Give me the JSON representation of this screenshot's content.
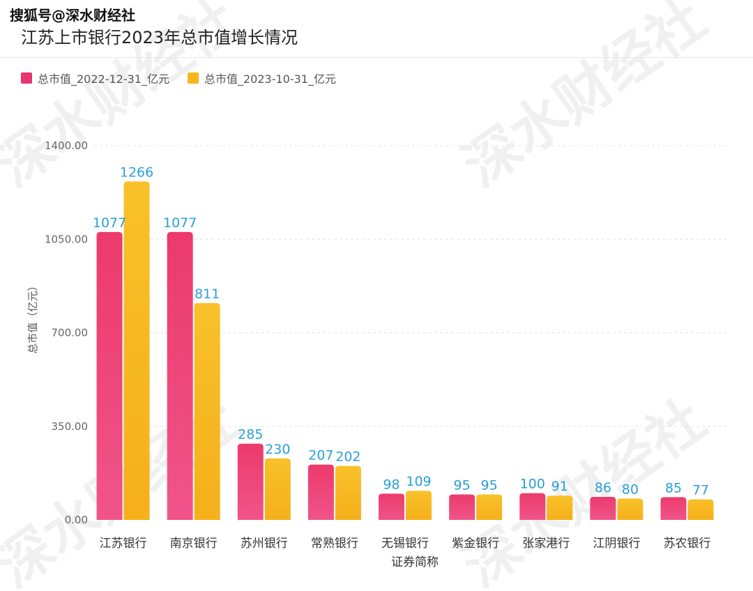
{
  "watermark": "搜狐号@深水财经社",
  "background_watermark": "深水财经社",
  "colors": {
    "series1": "#e8346f",
    "series2": "#f7b71e",
    "value_label": "#2a9fd8",
    "grid": "#e4e4e4"
  },
  "chart_data": {
    "type": "bar",
    "title": "江苏上市银行2023年总市值增长情况",
    "xlabel": "证券简称",
    "ylabel": "总市值（亿元）",
    "ylim": [
      0,
      1400
    ],
    "yticks": [
      "0.00",
      "350.00",
      "700.00",
      "1050.00",
      "1400.00"
    ],
    "ytick_values": [
      0,
      350,
      700,
      1050,
      1400
    ],
    "legend_position": "top-left",
    "grid": true,
    "categories": [
      "江苏银行",
      "南京银行",
      "苏州银行",
      "常熟银行",
      "无锡银行",
      "紫金银行",
      "张家港行",
      "江阴银行",
      "苏农银行"
    ],
    "series": [
      {
        "name": "总市值_2022-12-31_亿元",
        "color": "#e8346f",
        "values": [
          1077,
          1077,
          285,
          207,
          98,
          95,
          100,
          86,
          85
        ]
      },
      {
        "name": "总市值_2023-10-31_亿元",
        "color": "#f7b71e",
        "values": [
          1266,
          811,
          230,
          202,
          109,
          95,
          91,
          80,
          77
        ]
      }
    ]
  }
}
